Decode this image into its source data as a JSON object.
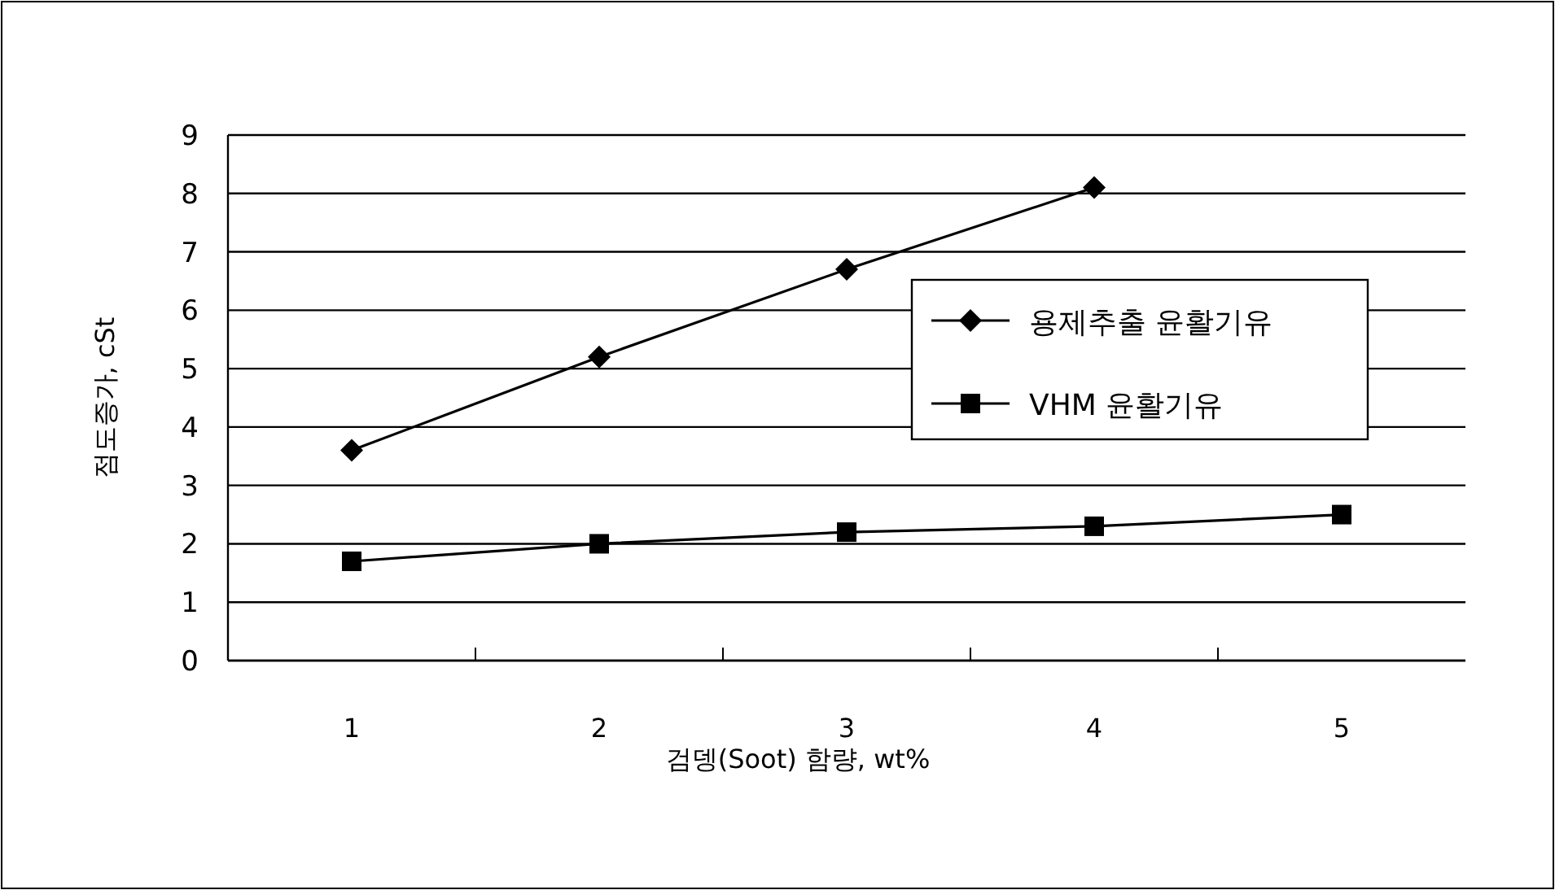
{
  "chart_data": {
    "type": "line",
    "xlabel": "검뎅(Soot) 함량, wt%",
    "ylabel": "점도증가, cSt",
    "categories": [
      "1",
      "2",
      "3",
      "4",
      "5"
    ],
    "series": [
      {
        "name": "용제추출 윤활기유",
        "color": "#000000",
        "marker": "diamond",
        "values": [
          3.6,
          5.2,
          6.7,
          8.1,
          null
        ]
      },
      {
        "name": "VHM 윤활기유",
        "color": "#000000",
        "marker": "square",
        "values": [
          1.7,
          2.0,
          2.2,
          2.3,
          2.5
        ]
      }
    ],
    "ylim": [
      0,
      9
    ],
    "yticks": [
      0,
      1,
      2,
      3,
      4,
      5,
      6,
      7,
      8,
      9
    ],
    "grid": "y",
    "legend": "right",
    "line_style": "solid"
  }
}
